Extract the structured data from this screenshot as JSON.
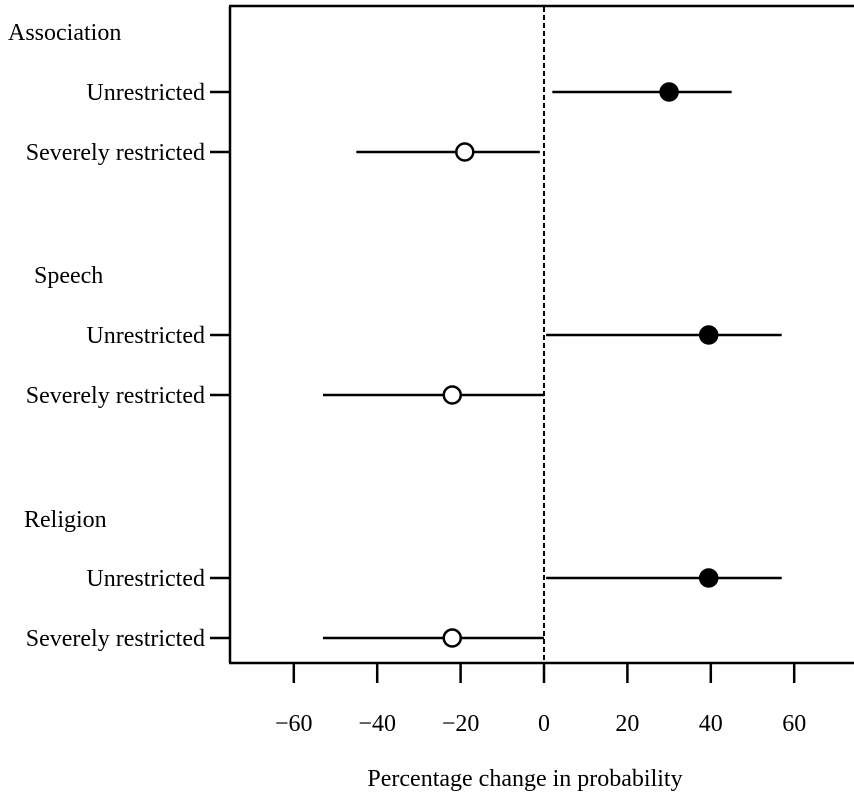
{
  "chart_data": {
    "type": "scatter",
    "subtype": "forest-plot",
    "title": "",
    "xlabel": "Percentage change in probability",
    "ylabel": "",
    "xlim": [
      -75,
      74
    ],
    "xticks": [
      -60,
      -40,
      -20,
      0,
      20,
      40,
      60
    ],
    "xtick_labels": [
      "−60",
      "−40",
      "−20",
      "0",
      "20",
      "40",
      "60"
    ],
    "reference_line": {
      "x": 0,
      "style": "dashed"
    },
    "grid": false,
    "legend": "none",
    "marker_colors": {
      "Unrestricted": "#000000",
      "Severely restricted": "#ffffff"
    },
    "groups": [
      {
        "name": "Association",
        "rows": [
          {
            "label": "Unrestricted",
            "estimate": 30,
            "lower": 2,
            "upper": 45,
            "marker": "filled"
          },
          {
            "label": "Severely restricted",
            "estimate": -19,
            "lower": -45,
            "upper": -1,
            "marker": "open"
          }
        ]
      },
      {
        "name": "Speech",
        "rows": [
          {
            "label": "Unrestricted",
            "estimate": 39.5,
            "lower": 0.5,
            "upper": 57,
            "marker": "filled"
          },
          {
            "label": "Severely restricted",
            "estimate": -22,
            "lower": -53,
            "upper": 0,
            "marker": "open"
          }
        ]
      },
      {
        "name": "Religion",
        "rows": [
          {
            "label": "Unrestricted",
            "estimate": 39.5,
            "lower": 0.5,
            "upper": 57,
            "marker": "filled"
          },
          {
            "label": "Severely restricted",
            "estimate": -22,
            "lower": -53,
            "upper": 0,
            "marker": "open"
          }
        ]
      }
    ]
  }
}
